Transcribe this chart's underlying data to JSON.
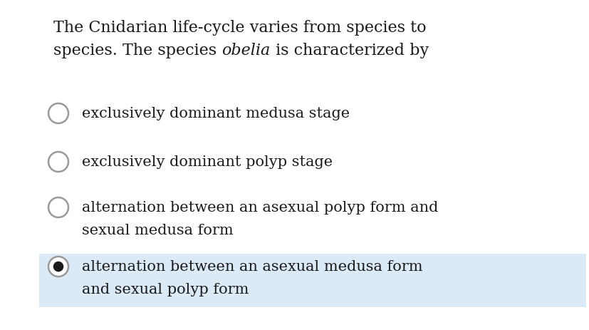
{
  "background_color": "#ffffff",
  "highlight_color": "#dce9f7",
  "title_line1": "The Cnidarian life-cycle varies from species to",
  "title_line2_pre": "species. The species ",
  "title_italic": "obelia",
  "title_line2_post": " is characterized by",
  "options": [
    {
      "line1": "exclusively dominant medusa stage",
      "line2": null,
      "selected": false,
      "highlighted": false
    },
    {
      "line1": "exclusively dominant polyp stage",
      "line2": null,
      "selected": false,
      "highlighted": false
    },
    {
      "line1": "alternation between an asexual polyp form and",
      "line2": "sexual medusa form",
      "selected": false,
      "highlighted": false
    },
    {
      "line1": "alternation between an asexual medusa form",
      "line2": "and sexual polyp form",
      "selected": true,
      "highlighted": true
    }
  ],
  "font_size_title": 16,
  "font_size_option": 15,
  "text_color": "#1a1a1a",
  "circle_edge_color": "#999999",
  "circle_fill_color": "#ffffff",
  "selected_dot_color": "#1a1a1a"
}
